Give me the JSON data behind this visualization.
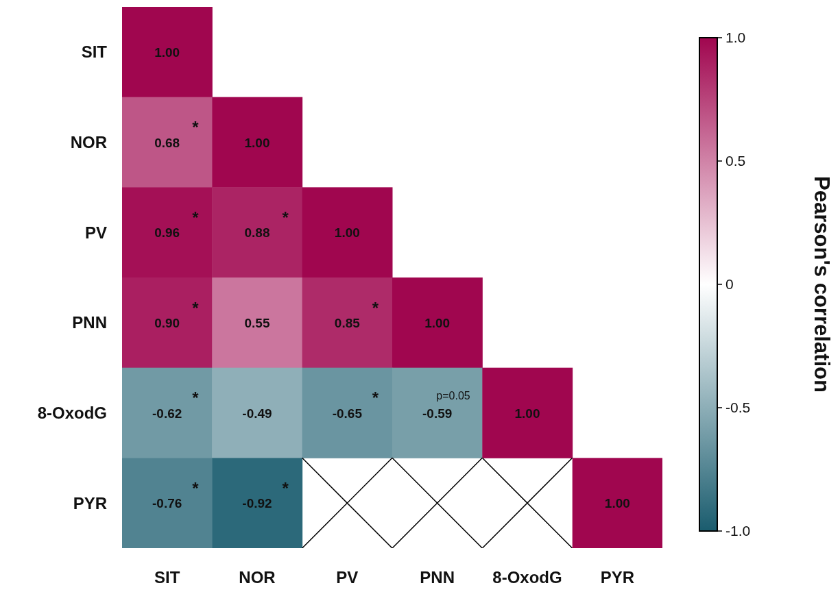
{
  "chart_data": {
    "type": "heatmap",
    "clabel": "Pearson's correlation",
    "categories": [
      "SIT",
      "NOR",
      "PV",
      "PNN",
      "8-OxodG",
      "PYR"
    ],
    "y_categories": [
      "SIT",
      "NOR",
      "PV",
      "PNN",
      "8-OxodG",
      "PYR"
    ],
    "cells": [
      [
        1.0,
        null,
        null,
        null,
        null,
        null
      ],
      [
        0.68,
        1.0,
        null,
        null,
        null,
        null
      ],
      [
        0.96,
        0.88,
        1.0,
        null,
        null,
        null
      ],
      [
        0.9,
        0.55,
        0.85,
        1.0,
        null,
        null
      ],
      [
        -0.62,
        -0.49,
        -0.65,
        -0.59,
        1.0,
        null
      ],
      [
        -0.76,
        -0.92,
        null,
        null,
        null,
        1.0
      ]
    ],
    "cell_labels": [
      [
        "1.00",
        null,
        null,
        null,
        null,
        null
      ],
      [
        "*\n0.68",
        "1.00",
        null,
        null,
        null,
        null
      ],
      [
        "*\n0.96",
        "*\n0.88",
        "1.00",
        null,
        null,
        null
      ],
      [
        "*\n0.90",
        "0.55",
        "*\n0.85",
        "1.00",
        null,
        null
      ],
      [
        "*\n-0.62",
        "-0.49",
        "*\n-0.65",
        "p=0.05\n-0.59",
        "1.00",
        null
      ],
      [
        "*\n-0.76",
        "*\n-0.92",
        null,
        null,
        null,
        "1.00"
      ]
    ],
    "clim": [
      -1,
      1
    ],
    "cticks": [
      {
        "value": -1,
        "label": "-1.0"
      },
      {
        "value": -0.5,
        "label": "-0.5"
      },
      0,
      {
        "value": 0.5,
        "label": "0.5"
      },
      {
        "value": 1,
        "label": "1.0"
      }
    ]
  }
}
